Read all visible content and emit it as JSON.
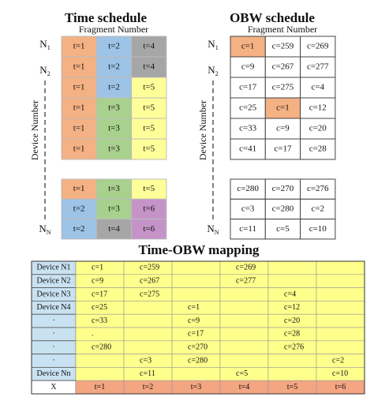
{
  "time_schedule": {
    "title": "Time schedule",
    "x_label": "Fragment Number",
    "y_label": "Device Number",
    "row_labels": [
      {
        "main": "N",
        "sub": "1"
      },
      {
        "main": "N",
        "sub": "2"
      },
      {
        "main": "N",
        "sub": "N"
      }
    ],
    "top_rows": [
      [
        {
          "text": "t=1",
          "color": "#f4b183"
        },
        {
          "text": "t=2",
          "color": "#9dc3e6"
        },
        {
          "text": "t=4",
          "color": "#a6a6a6"
        }
      ],
      [
        {
          "text": "t=1",
          "color": "#f4b183"
        },
        {
          "text": "t=2",
          "color": "#9dc3e6"
        },
        {
          "text": "t=4",
          "color": "#a6a6a6"
        }
      ],
      [
        {
          "text": "t=1",
          "color": "#f4b183"
        },
        {
          "text": "t=2",
          "color": "#9dc3e6"
        },
        {
          "text": "t=5",
          "color": "#ffff99"
        }
      ],
      [
        {
          "text": "t=1",
          "color": "#f4b183"
        },
        {
          "text": "t=3",
          "color": "#a9d18e"
        },
        {
          "text": "t=5",
          "color": "#ffff99"
        }
      ],
      [
        {
          "text": "t=1",
          "color": "#f4b183"
        },
        {
          "text": "t=3",
          "color": "#a9d18e"
        },
        {
          "text": "t=5",
          "color": "#ffff99"
        }
      ],
      [
        {
          "text": "t=1",
          "color": "#f4b183"
        },
        {
          "text": "t=3",
          "color": "#a9d18e"
        },
        {
          "text": "t=5",
          "color": "#ffff99"
        }
      ]
    ],
    "bottom_rows": [
      [
        {
          "text": "t=1",
          "color": "#f4b183"
        },
        {
          "text": "t=3",
          "color": "#a9d18e"
        },
        {
          "text": "t=5",
          "color": "#ffff99"
        }
      ],
      [
        {
          "text": "t=2",
          "color": "#9dc3e6"
        },
        {
          "text": "t=3",
          "color": "#a9d18e"
        },
        {
          "text": "t=6",
          "color": "#c593c8"
        }
      ],
      [
        {
          "text": "t=2",
          "color": "#9dc3e6"
        },
        {
          "text": "t=4",
          "color": "#a6a6a6"
        },
        {
          "text": "t=6",
          "color": "#c593c8"
        }
      ]
    ]
  },
  "obw_schedule": {
    "title": "OBW schedule",
    "x_label": "Fragment Number",
    "y_label": "Device Number",
    "row_labels": [
      {
        "main": "N",
        "sub": "1"
      },
      {
        "main": "N",
        "sub": "2"
      },
      {
        "main": "N",
        "sub": "N"
      }
    ],
    "top_rows": [
      [
        {
          "text": "c=1",
          "color": "#f4b183"
        },
        "c=259",
        "c=269"
      ],
      [
        "c=9",
        "c=267",
        "c=277"
      ],
      [
        "c=17",
        "c=275",
        "c=4"
      ],
      [
        "c=25",
        {
          "text": "c=1",
          "color": "#f4b183"
        },
        "c=12"
      ],
      [
        "c=33",
        "c=9",
        "c=20"
      ],
      [
        "c=41",
        "c=17",
        "c=28"
      ]
    ],
    "bottom_rows": [
      [
        "c=280",
        "c=270",
        "c=276"
      ],
      [
        "c=3",
        "c=280",
        "c=2"
      ],
      [
        "c=11",
        "c=5",
        "c=10"
      ]
    ]
  },
  "mapping": {
    "title": "Time-OBW mapping",
    "rows": [
      {
        "label": "Device N1",
        "cells": [
          "c=1",
          "c=259",
          null,
          "c=269",
          null,
          null
        ]
      },
      {
        "label": "Device N2",
        "cells": [
          "c=9",
          "c=267",
          null,
          "c=277",
          null,
          null
        ]
      },
      {
        "label": "Device N3",
        "cells": [
          "c=17",
          "c=275",
          null,
          null,
          "c=4",
          null
        ]
      },
      {
        "label": "Device N4",
        "cells": [
          "c=25",
          null,
          "c=1",
          null,
          "c=12",
          null
        ]
      },
      {
        "label": "·",
        "cells": [
          "c=33",
          null,
          "c=9",
          null,
          "c=20",
          null
        ]
      },
      {
        "label": "·",
        "cells": [
          ".",
          null,
          "c=17",
          null,
          "c=28",
          null
        ]
      },
      {
        "label": "·",
        "cells": [
          "c=280",
          null,
          "c=270",
          null,
          "c=276",
          null
        ]
      },
      {
        "label": "·",
        "cells": [
          null,
          "c=3",
          "c=280",
          null,
          null,
          "c=2"
        ]
      },
      {
        "label": "Device Nn",
        "cells": [
          null,
          "c=11",
          null,
          "c=5",
          null,
          "c=10"
        ]
      }
    ],
    "footer": {
      "label": "X",
      "cells": [
        "t=1",
        "t=2",
        "t=3",
        "t=4",
        "t=5",
        "t=6"
      ]
    }
  }
}
